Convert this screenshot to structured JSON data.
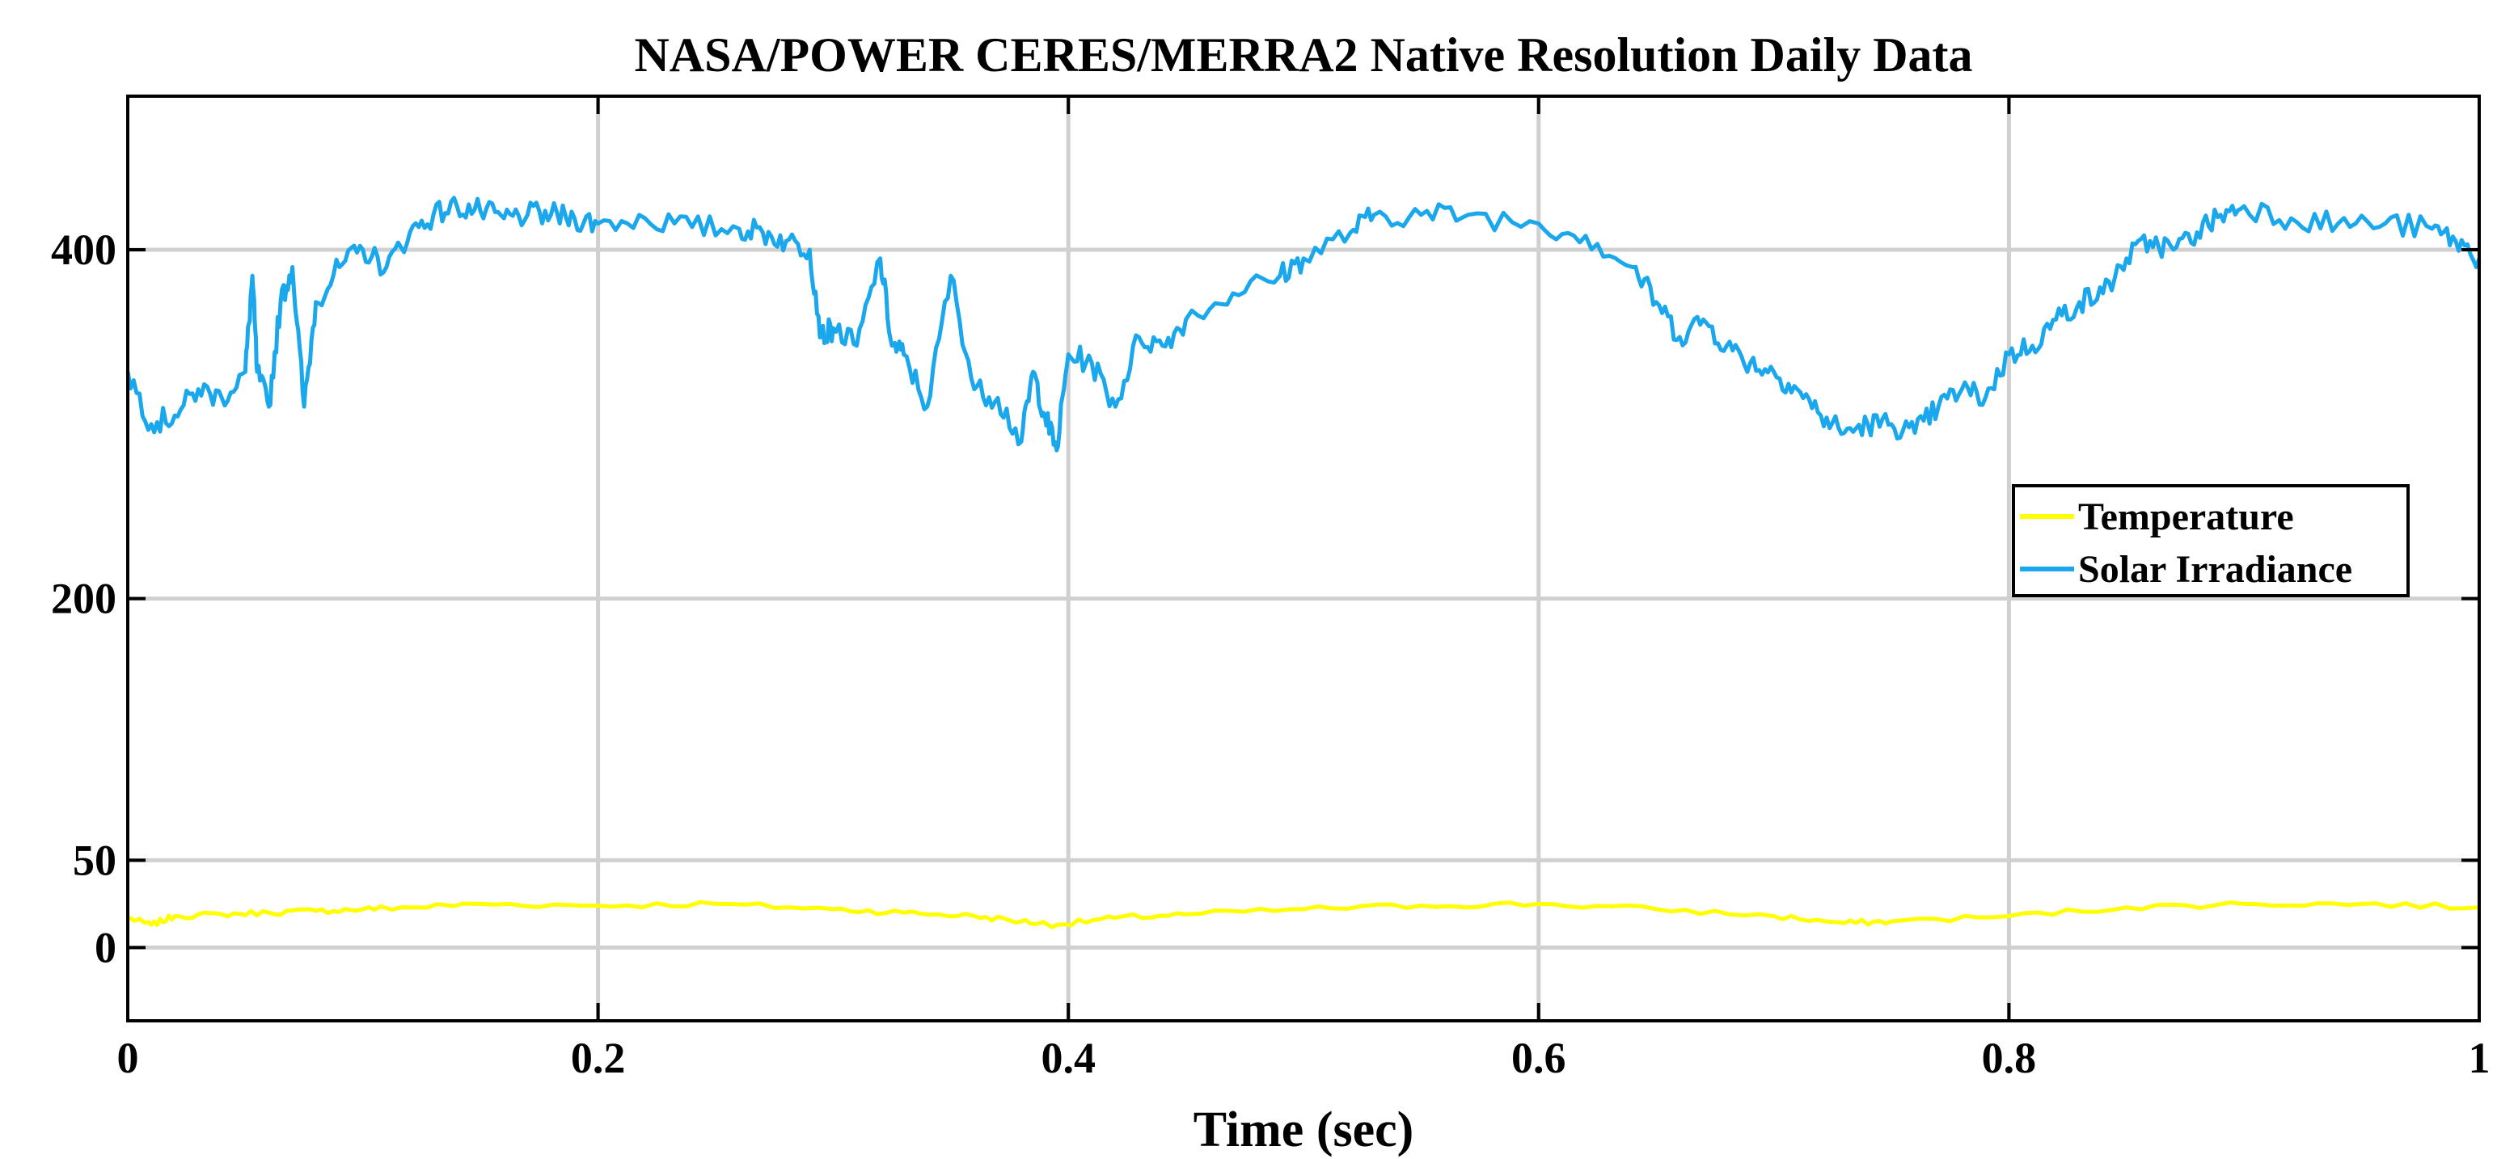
{
  "chart_data": {
    "type": "line",
    "title": "NASA/POWER CERES/MERRA2 Native Resolution Daily Data",
    "xlabel": "Time (sec)",
    "ylabel": "",
    "xlim": [
      0,
      1
    ],
    "ylim": [
      -42,
      488
    ],
    "x_ticks": [
      0,
      0.2,
      0.4,
      0.6,
      0.8,
      1
    ],
    "x_tick_labels": [
      "0",
      "0.2",
      "0.4",
      "0.6",
      "0.8",
      "1"
    ],
    "y_ticks": [
      0,
      50,
      200,
      400
    ],
    "y_tick_labels": [
      "0",
      "50",
      "200",
      "400"
    ],
    "grid": true,
    "legend_position": "right",
    "series": [
      {
        "name": "Temperature",
        "color": "#ffff00",
        "x": [
          0,
          0.01,
          0.02,
          0.04,
          0.06,
          0.08,
          0.1,
          0.12,
          0.15,
          0.2,
          0.25,
          0.3,
          0.33,
          0.36,
          0.38,
          0.395,
          0.42,
          0.45,
          0.5,
          0.55,
          0.6,
          0.65,
          0.7,
          0.73,
          0.75,
          0.8,
          0.85,
          0.9,
          0.95,
          1
        ],
        "values": [
          17,
          13,
          18,
          19,
          20,
          21,
          22,
          23,
          25,
          24,
          25,
          22,
          20,
          18,
          15,
          13,
          17,
          19,
          22,
          24,
          25,
          22,
          18,
          14,
          15,
          18,
          23,
          25,
          25,
          23
        ]
      },
      {
        "name": "Solar Irradiance",
        "color": "#1aa7ec",
        "x": [
          0,
          0.01,
          0.02,
          0.03,
          0.04,
          0.05,
          0.053,
          0.055,
          0.06,
          0.065,
          0.07,
          0.075,
          0.08,
          0.09,
          0.1,
          0.11,
          0.12,
          0.13,
          0.14,
          0.15,
          0.16,
          0.17,
          0.18,
          0.19,
          0.2,
          0.22,
          0.24,
          0.26,
          0.27,
          0.28,
          0.29,
          0.295,
          0.3,
          0.31,
          0.32,
          0.325,
          0.33,
          0.34,
          0.35,
          0.36,
          0.37,
          0.38,
          0.385,
          0.39,
          0.395,
          0.4,
          0.41,
          0.42,
          0.43,
          0.44,
          0.45,
          0.47,
          0.49,
          0.5,
          0.52,
          0.53,
          0.55,
          0.57,
          0.6,
          0.62,
          0.64,
          0.65,
          0.66,
          0.67,
          0.68,
          0.69,
          0.7,
          0.71,
          0.72,
          0.73,
          0.74,
          0.75,
          0.76,
          0.77,
          0.78,
          0.79,
          0.8,
          0.81,
          0.82,
          0.83,
          0.84,
          0.85,
          0.86,
          0.87,
          0.88,
          0.89,
          0.9,
          0.92,
          0.94,
          0.96,
          0.98,
          0.99,
          1
        ],
        "values": [
          330,
          300,
          305,
          320,
          315,
          330,
          385,
          330,
          310,
          370,
          390,
          310,
          370,
          390,
          400,
          390,
          410,
          420,
          425,
          422,
          418,
          420,
          420,
          418,
          415,
          418,
          413,
          412,
          410,
          405,
          400,
          350,
          355,
          345,
          395,
          345,
          340,
          310,
          385,
          320,
          315,
          290,
          330,
          305,
          285,
          340,
          335,
          310,
          350,
          345,
          360,
          375,
          385,
          395,
          410,
          420,
          420,
          420,
          415,
          408,
          390,
          370,
          350,
          360,
          345,
          335,
          330,
          320,
          305,
          295,
          300,
          300,
          295,
          310,
          320,
          315,
          340,
          345,
          360,
          370,
          375,
          395,
          405,
          400,
          410,
          420,
          425,
          418,
          415,
          415,
          412,
          405,
          395
        ]
      }
    ]
  }
}
